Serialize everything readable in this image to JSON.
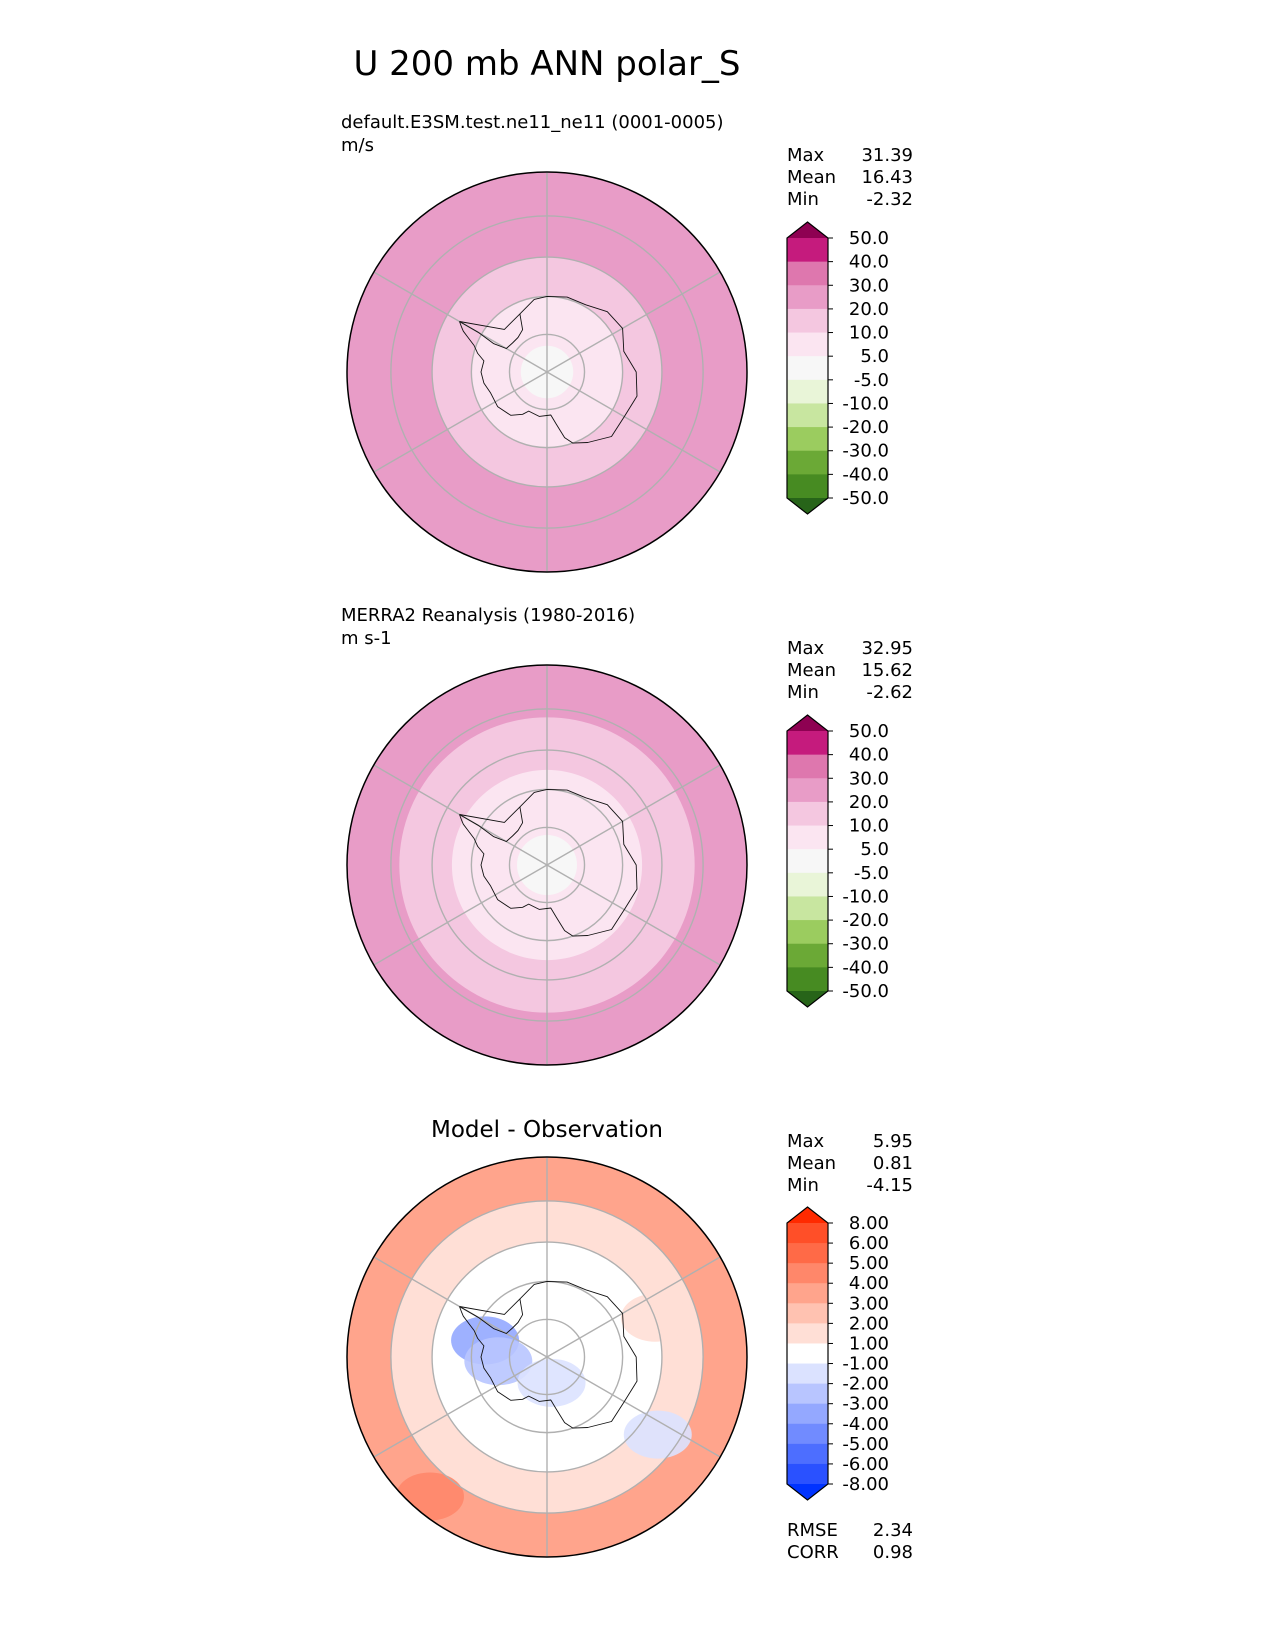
{
  "figure": {
    "title": "U 200 mb ANN polar_S"
  },
  "chart_data": [
    {
      "type": "heatmap",
      "projection": "south-polar-stereographic",
      "title": "default.E3SM.test.ne11_ne11 (0001-0005)",
      "units": "m/s",
      "stats": [
        {
          "label": "Max",
          "value": "31.39"
        },
        {
          "label": "Mean",
          "value": "16.43"
        },
        {
          "label": "Min",
          "value": "-2.32"
        }
      ],
      "colorbar": {
        "tick_labels": [
          "50.0",
          "40.0",
          "30.0",
          "20.0",
          "10.0",
          "5.0",
          "-5.0",
          "-10.0",
          "-20.0",
          "-30.0",
          "-40.0",
          "-50.0"
        ],
        "colors": [
          "#8e0152",
          "#c51b7d",
          "#de77ae",
          "#e89cc7",
          "#f4c7e0",
          "#fbe5f1",
          "#f7f7f7",
          "#e9f5d8",
          "#c8e6a0",
          "#9bcc5f",
          "#6ba936",
          "#478b22",
          "#276419"
        ]
      },
      "field": {
        "rings": [
          {
            "lat": -40,
            "value": 25
          },
          {
            "lat": -50,
            "value": 22
          },
          {
            "lat": -60,
            "value": 15
          },
          {
            "lat": -70,
            "value": 8
          },
          {
            "lat": -83,
            "value": 2
          }
        ]
      }
    },
    {
      "type": "heatmap",
      "projection": "south-polar-stereographic",
      "title": "MERRA2 Reanalysis (1980-2016)",
      "units": "m s-1",
      "stats": [
        {
          "label": "Max",
          "value": "32.95"
        },
        {
          "label": "Mean",
          "value": "15.62"
        },
        {
          "label": "Min",
          "value": "-2.62"
        }
      ],
      "colorbar": {
        "tick_labels": [
          "50.0",
          "40.0",
          "30.0",
          "20.0",
          "10.0",
          "5.0",
          "-5.0",
          "-10.0",
          "-20.0",
          "-30.0",
          "-40.0",
          "-50.0"
        ],
        "colors": [
          "#8e0152",
          "#c51b7d",
          "#de77ae",
          "#e89cc7",
          "#f4c7e0",
          "#fbe5f1",
          "#f7f7f7",
          "#e9f5d8",
          "#c8e6a0",
          "#9bcc5f",
          "#6ba936",
          "#478b22",
          "#276419"
        ]
      },
      "field": {
        "rings": [
          {
            "lat": -40,
            "value": 26
          },
          {
            "lat": -52,
            "value": 15
          },
          {
            "lat": -65,
            "value": 7
          },
          {
            "lat": -82,
            "value": 2
          }
        ]
      }
    },
    {
      "type": "heatmap",
      "projection": "south-polar-stereographic",
      "title": "Model - Observation",
      "stats": [
        {
          "label": "Max",
          "value": "5.95"
        },
        {
          "label": "Mean",
          "value": "0.81"
        },
        {
          "label": "Min",
          "value": "-4.15"
        }
      ],
      "colorbar": {
        "tick_labels": [
          "8.00",
          "6.00",
          "5.00",
          "4.00",
          "3.00",
          "2.00",
          "1.00",
          "-1.00",
          "-2.00",
          "-3.00",
          "-4.00",
          "-5.00",
          "-6.00",
          "-8.00"
        ],
        "colors": [
          "#ff2a00",
          "#ff4f28",
          "#ff6a47",
          "#ff876a",
          "#ffa48c",
          "#ffc2b1",
          "#ffdfd6",
          "#ffffff",
          "#dbe2ff",
          "#b8c5ff",
          "#94a8ff",
          "#718bff",
          "#4d6eff",
          "#2a51ff",
          "#0033ff"
        ]
      },
      "field": {
        "rings": [
          {
            "lat": -40,
            "value": 3
          },
          {
            "lat": -50,
            "value": 1.5
          },
          {
            "lat": -60,
            "value": 0
          }
        ],
        "blobs": [
          {
            "lon": -75,
            "lat": -73,
            "value": -3.5
          },
          {
            "lon": -95,
            "lat": -77,
            "value": -2.5
          },
          {
            "lon": 125,
            "lat": -55,
            "value": -1.5
          },
          {
            "lon": 170,
            "lat": -83,
            "value": -1.5
          },
          {
            "lon": -140,
            "lat": -44,
            "value": 4.5
          },
          {
            "lon": 70,
            "lat": -60,
            "value": 1.5
          }
        ]
      },
      "footer_stats": [
        {
          "label": "RMSE",
          "value": "2.34"
        },
        {
          "label": "CORR",
          "value": "0.98"
        }
      ]
    }
  ],
  "antarctica": {
    "coastline": [
      [
        -60,
        -63.5
      ],
      [
        -45,
        -74
      ],
      [
        -25,
        -73
      ],
      [
        -10,
        -70.5
      ],
      [
        0,
        -70
      ],
      [
        15,
        -69.5
      ],
      [
        30,
        -69.5
      ],
      [
        45,
        -67.5
      ],
      [
        60,
        -67
      ],
      [
        75,
        -69
      ],
      [
        90,
        -66.5
      ],
      [
        105,
        -65.5
      ],
      [
        120,
        -66.5
      ],
      [
        135,
        -66
      ],
      [
        150,
        -68.5
      ],
      [
        160,
        -70
      ],
      [
        165,
        -72
      ],
      [
        170,
        -76
      ],
      [
        175,
        -78.5
      ],
      [
        -170,
        -78
      ],
      [
        -155,
        -78.5
      ],
      [
        -150,
        -77
      ],
      [
        -140,
        -75
      ],
      [
        -125,
        -74
      ],
      [
        -110,
        -74
      ],
      [
        -100,
        -73
      ],
      [
        -90,
        -72.5
      ],
      [
        -80,
        -73
      ],
      [
        -75,
        -71
      ],
      [
        -70,
        -69.5
      ],
      [
        -66,
        -67
      ],
      [
        -64,
        -65.5
      ],
      [
        -62,
        -64.5
      ],
      [
        -60,
        -63.5
      ]
    ],
    "weddell": [
      [
        -60,
        -63.5
      ],
      [
        -60,
        -69
      ],
      [
        -62,
        -74
      ],
      [
        -60,
        -77.5
      ],
      [
        -50,
        -78
      ],
      [
        -40,
        -78
      ],
      [
        -30,
        -77
      ],
      [
        -25,
        -73
      ]
    ]
  }
}
